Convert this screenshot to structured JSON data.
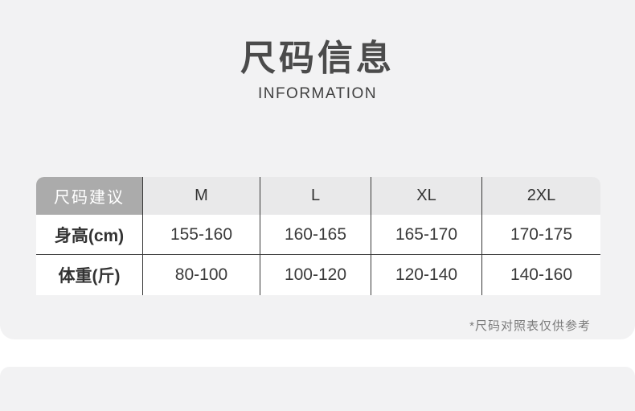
{
  "header": {
    "title": "尺码信息",
    "subtitle": "INFORMATION"
  },
  "size_table": {
    "corner_label": "尺码建议",
    "columns": [
      "M",
      "L",
      "XL",
      "2XL"
    ],
    "rows": [
      {
        "label": "身高(cm)",
        "values": [
          "155-160",
          "160-165",
          "165-170",
          "170-175"
        ]
      },
      {
        "label": "体重(斤)",
        "values": [
          "80-100",
          "100-120",
          "120-140",
          "140-160"
        ]
      }
    ]
  },
  "footnote": "*尺码对照表仅供参考",
  "colors": {
    "page_background": "#f2f2f3",
    "table_body_background": "#ffffff",
    "corner_header_background": "#ababab",
    "column_header_background": "#e9e9ea",
    "divider_line": "#383838",
    "title_text": "#4b4b4b",
    "body_text": "#3a3a3a",
    "footnote_text": "#7b7b7b"
  },
  "chart_data": {
    "type": "table",
    "title": "尺码信息",
    "columns": [
      "尺码建议",
      "M",
      "L",
      "XL",
      "2XL"
    ],
    "rows": [
      [
        "身高(cm)",
        "155-160",
        "160-165",
        "165-170",
        "170-175"
      ],
      [
        "体重(斤)",
        "80-100",
        "100-120",
        "120-140",
        "140-160"
      ]
    ]
  }
}
